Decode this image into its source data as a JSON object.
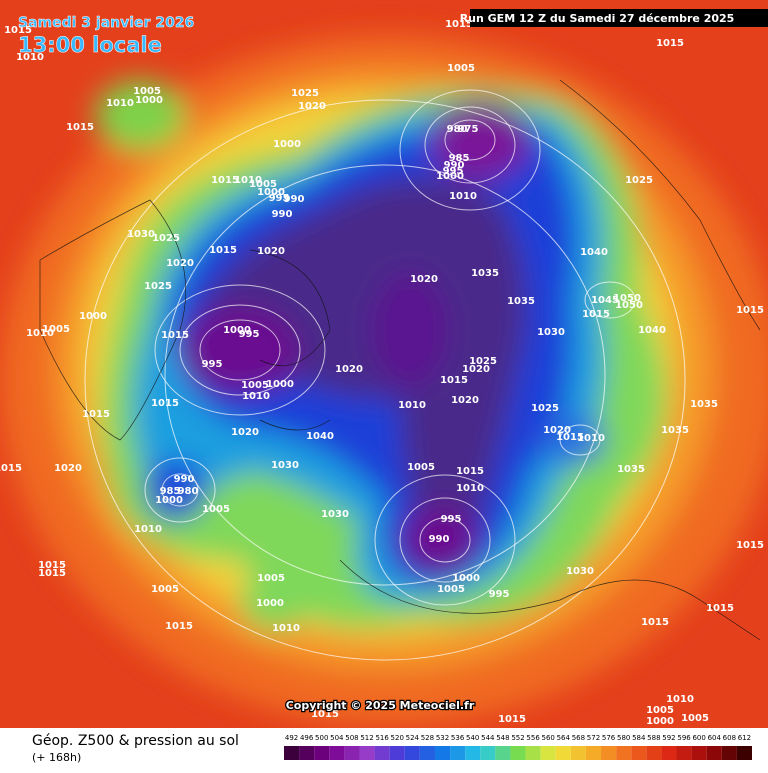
{
  "header": {
    "date": "Samedi 3 janvier 2026",
    "time": "13:00 locale",
    "run": "Run GEM 12 Z du Samedi 27 décembre 2025"
  },
  "copyright": "Copyright © 2025 Meteociel.fr",
  "legend": {
    "title": "Géop. Z500 & pression au sol",
    "subtitle": "(+ 168h)",
    "ticks": [
      492,
      496,
      500,
      504,
      508,
      512,
      516,
      520,
      524,
      528,
      532,
      536,
      540,
      544,
      548,
      552,
      556,
      560,
      564,
      568,
      572,
      576,
      580,
      584,
      588,
      592,
      596,
      600,
      604,
      608,
      612
    ]
  },
  "isobar_labels": [
    1015,
    1010,
    1005,
    1000,
    1025,
    1020,
    1000,
    1015,
    1010,
    1005,
    1000,
    995,
    990,
    990,
    1030,
    1025,
    1020,
    1015,
    1020,
    1025,
    1000,
    1005,
    1010,
    1015,
    1000,
    995,
    995,
    1005,
    1010,
    1000,
    1015,
    1020,
    1020,
    1040,
    1030,
    1015,
    1020,
    1015,
    990,
    985,
    980,
    1000,
    1005,
    1010,
    1030,
    1015,
    1015,
    1005,
    1005,
    1000,
    1010,
    1015,
    1005,
    980,
    975,
    985,
    990,
    995,
    1000,
    1010,
    1025,
    1020,
    1035,
    1035,
    1030,
    1040,
    1045,
    1050,
    1050,
    1015,
    1040,
    1025,
    1015,
    1020,
    1020,
    1010,
    1005,
    1015,
    1010,
    1025,
    1020,
    1015,
    1010,
    1035,
    1035,
    1035,
    995,
    990,
    1000,
    1005,
    995,
    1030,
    1015,
    1015,
    1015,
    1015,
    1010,
    1005,
    1000,
    1005,
    1015,
    1015,
    1010,
    1015,
    1015,
    1015
  ]
}
